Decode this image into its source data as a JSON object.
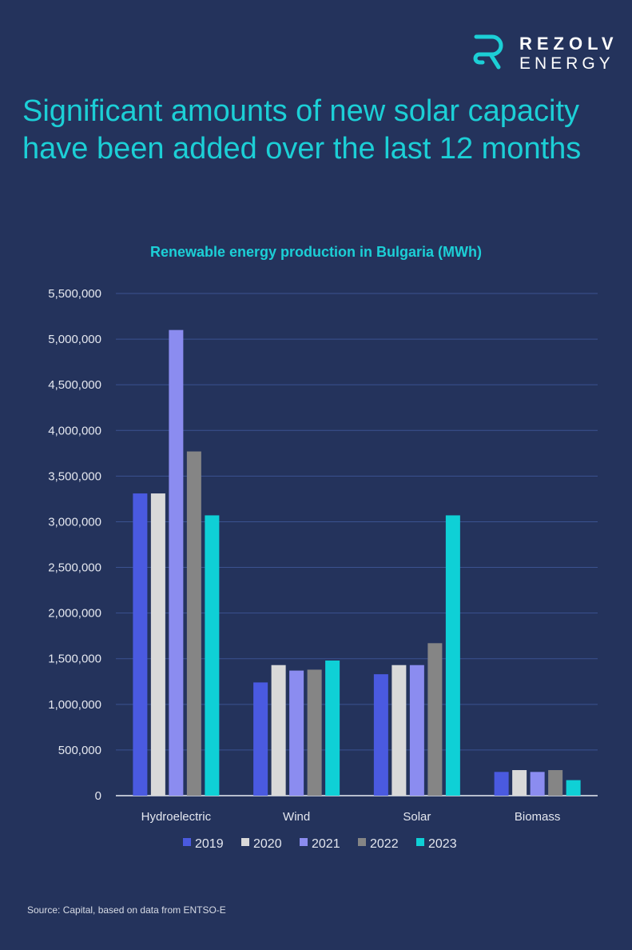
{
  "brand": {
    "name": "REZOLV",
    "sub": "ENERGY",
    "accent": "#1ccfd6"
  },
  "headline": "Significant amounts of new solar capacity have been added over the last 12 months",
  "source": "Source: Capital, based on data from ENTSO-E",
  "chart_data": {
    "type": "bar",
    "title": "Renewable energy production in Bulgaria (MWh)",
    "xlabel": "",
    "ylabel": "",
    "categories": [
      "Hydroelectric",
      "Wind",
      "Solar",
      "Biomass"
    ],
    "ylim": [
      0,
      5500000
    ],
    "yticks": [
      0,
      500000,
      1000000,
      1500000,
      2000000,
      2500000,
      3000000,
      3500000,
      4000000,
      4500000,
      5000000,
      5500000
    ],
    "ytick_labels": [
      "0",
      "500,000",
      "1,000,000",
      "1,500,000",
      "2,000,000",
      "2,500,000",
      "3,000,000",
      "3,500,000",
      "4,000,000",
      "4,500,000",
      "5,000,000",
      "5,500,000"
    ],
    "grid": true,
    "legend": "bottom",
    "series": [
      {
        "name": "2019",
        "color": "#4a5ae0",
        "values": [
          3310000,
          1240000,
          1330000,
          260000
        ]
      },
      {
        "name": "2020",
        "color": "#d9d9d9",
        "values": [
          3310000,
          1430000,
          1430000,
          280000
        ]
      },
      {
        "name": "2021",
        "color": "#8b8cf0",
        "values": [
          5100000,
          1370000,
          1430000,
          260000
        ]
      },
      {
        "name": "2022",
        "color": "#858585",
        "values": [
          3770000,
          1380000,
          1670000,
          280000
        ]
      },
      {
        "name": "2023",
        "color": "#0fd0d6",
        "values": [
          3070000,
          1480000,
          3070000,
          170000
        ]
      }
    ]
  }
}
